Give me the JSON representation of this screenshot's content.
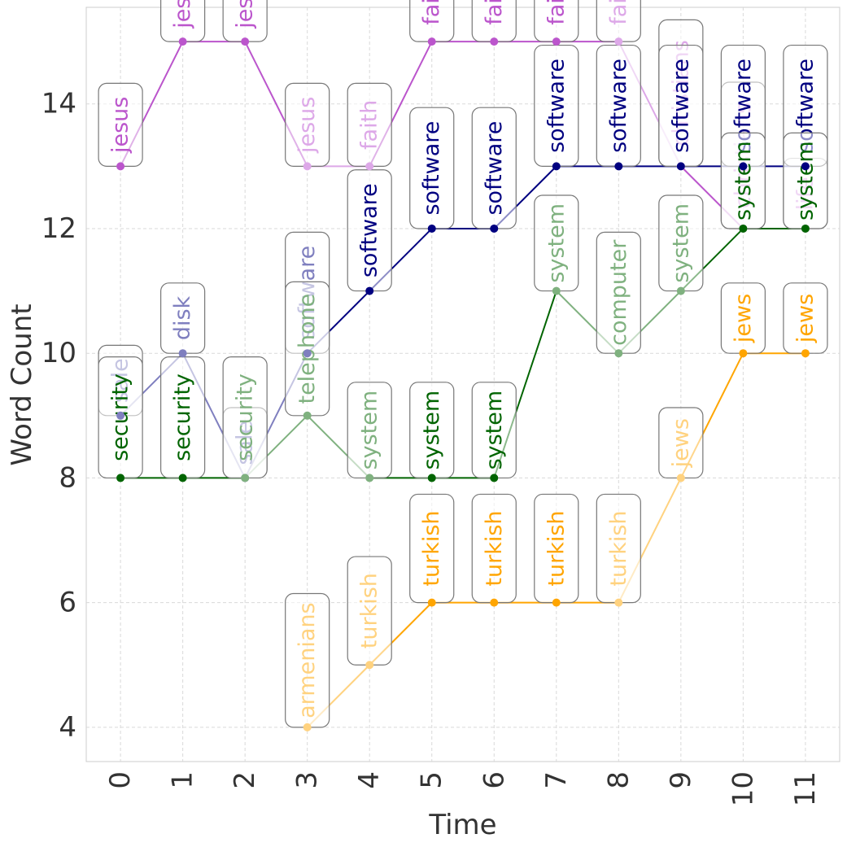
{
  "chart_data": {
    "type": "line",
    "title": "",
    "xlabel": "Time",
    "ylabel": "Word Count",
    "x": [
      0,
      1,
      2,
      3,
      4,
      5,
      6,
      7,
      8,
      9,
      10,
      11
    ],
    "x_ticks": [
      "0",
      "1",
      "2",
      "3",
      "4",
      "5",
      "6",
      "7",
      "8",
      "9",
      "10",
      "11"
    ],
    "y_ticks": [
      "4",
      "6",
      "8",
      "10",
      "12",
      "14"
    ],
    "xlim": [
      -0.55,
      11.55
    ],
    "ylim": [
      3.45,
      15.55
    ],
    "grid": true,
    "series": [
      {
        "name": "topic-purple",
        "color": "#bb55cc",
        "light_color": "#dda8e8",
        "points": [
          {
            "x": 0,
            "y": 13,
            "word": "jesus"
          },
          {
            "x": 1,
            "y": 15,
            "word": "jesus"
          },
          {
            "x": 2,
            "y": 15,
            "word": "jesus"
          },
          {
            "x": 3,
            "y": 13,
            "word": "jesus"
          },
          {
            "x": 4,
            "y": 13,
            "word": "faith"
          },
          {
            "x": 5,
            "y": 15,
            "word": "faith"
          },
          {
            "x": 6,
            "y": 15,
            "word": "faith"
          },
          {
            "x": 7,
            "y": 15,
            "word": "faith"
          },
          {
            "x": 8,
            "y": 15,
            "word": "faith"
          },
          {
            "x": 9,
            "y": 13,
            "word": "christians"
          },
          {
            "x": 10,
            "y": 12,
            "word": "christians"
          },
          {
            "x": 11,
            "y": 12,
            "word": "life"
          }
        ]
      },
      {
        "name": "topic-navy",
        "color": "#000080",
        "light_color": "#7f7fbf",
        "points": [
          {
            "x": 0,
            "y": 9,
            "word": "sale"
          },
          {
            "x": 1,
            "y": 10,
            "word": "disk"
          },
          {
            "x": 2,
            "y": 8,
            "word": "sale"
          },
          {
            "x": 3,
            "y": 10,
            "word": "software"
          },
          {
            "x": 4,
            "y": 11,
            "word": "software"
          },
          {
            "x": 5,
            "y": 12,
            "word": "software"
          },
          {
            "x": 6,
            "y": 12,
            "word": "software"
          },
          {
            "x": 7,
            "y": 13,
            "word": "software"
          },
          {
            "x": 8,
            "y": 13,
            "word": "software"
          },
          {
            "x": 9,
            "y": 13,
            "word": "software"
          },
          {
            "x": 10,
            "y": 13,
            "word": "software"
          },
          {
            "x": 11,
            "y": 13,
            "word": "software"
          }
        ]
      },
      {
        "name": "topic-green",
        "color": "#006400",
        "light_color": "#7fb17f",
        "points": [
          {
            "x": 0,
            "y": 8,
            "word": "security"
          },
          {
            "x": 1,
            "y": 8,
            "word": "security"
          },
          {
            "x": 2,
            "y": 8,
            "word": "security"
          },
          {
            "x": 3,
            "y": 9,
            "word": "telephone"
          },
          {
            "x": 4,
            "y": 8,
            "word": "system"
          },
          {
            "x": 5,
            "y": 8,
            "word": "system"
          },
          {
            "x": 6,
            "y": 8,
            "word": "system"
          },
          {
            "x": 7,
            "y": 11,
            "word": "system"
          },
          {
            "x": 8,
            "y": 10,
            "word": "computer"
          },
          {
            "x": 9,
            "y": 11,
            "word": "system"
          },
          {
            "x": 10,
            "y": 12,
            "word": "system"
          },
          {
            "x": 11,
            "y": 12,
            "word": "system"
          }
        ]
      },
      {
        "name": "topic-orange",
        "color": "#ffa500",
        "light_color": "#ffd27f",
        "points": [
          {
            "x": 3,
            "y": 4,
            "word": "armenians"
          },
          {
            "x": 4,
            "y": 5,
            "word": "turkish"
          },
          {
            "x": 5,
            "y": 6,
            "word": "turkish"
          },
          {
            "x": 6,
            "y": 6,
            "word": "turkish"
          },
          {
            "x": 7,
            "y": 6,
            "word": "turkish"
          },
          {
            "x": 8,
            "y": 6,
            "word": "turkish"
          },
          {
            "x": 9,
            "y": 8,
            "word": "jews"
          },
          {
            "x": 10,
            "y": 10,
            "word": "jews"
          },
          {
            "x": 11,
            "y": 10,
            "word": "jews"
          }
        ]
      }
    ]
  }
}
